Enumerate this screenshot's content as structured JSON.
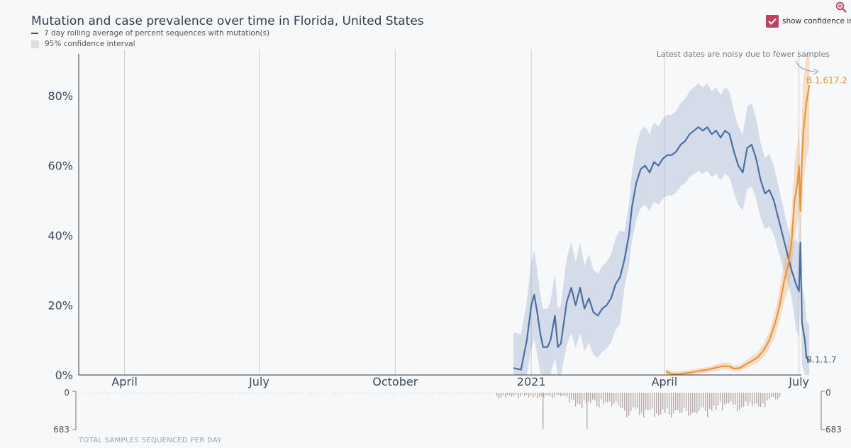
{
  "title": "Mutation and case prevalence over time in Florida, United States",
  "legend": {
    "line_label": "7 day rolling average of percent sequences with mutation(s)",
    "ci_label": "95% confidence interval"
  },
  "controls": {
    "ci_toggle_label": "show confidence interval",
    "ci_checked": true
  },
  "annotation": "Latest dates are noisy due to fewer samples",
  "footer_label": "TOTAL SAMPLES SEQUENCED PER DAY",
  "colors": {
    "b117": "#4a6fa5",
    "b16172": "#e8963a",
    "checkbox": "#c0405d",
    "bars": "#b8aba7"
  },
  "icons": {
    "zoom": "zoom-in-icon",
    "checkbox": "check-icon"
  },
  "chart_data": {
    "type": "line",
    "x_ticks": [
      "April",
      "July",
      "October",
      "2021",
      "April",
      "July"
    ],
    "y_ticks": [
      "0%",
      "20%",
      "40%",
      "60%",
      "80%"
    ],
    "ylim": [
      0,
      92
    ],
    "samples_axis": {
      "top_label": "0",
      "bottom_label": "683",
      "max": 683
    },
    "series": [
      {
        "name": "B.1.1.7",
        "color": "#4a6fa5",
        "points": [
          [
            "2020-12-20",
            2
          ],
          [
            "2020-12-25",
            1.5
          ],
          [
            "2020-12-29",
            10
          ],
          [
            "2021-01-01",
            20
          ],
          [
            "2021-01-03",
            23
          ],
          [
            "2021-01-05",
            18
          ],
          [
            "2021-01-07",
            12
          ],
          [
            "2021-01-09",
            8
          ],
          [
            "2021-01-12",
            8
          ],
          [
            "2021-01-14",
            10
          ],
          [
            "2021-01-17",
            17
          ],
          [
            "2021-01-19",
            8
          ],
          [
            "2021-01-21",
            9
          ],
          [
            "2021-01-25",
            21
          ],
          [
            "2021-01-28",
            25
          ],
          [
            "2021-01-31",
            20
          ],
          [
            "2021-02-03",
            25
          ],
          [
            "2021-02-06",
            19
          ],
          [
            "2021-02-09",
            22
          ],
          [
            "2021-02-12",
            18
          ],
          [
            "2021-02-15",
            17
          ],
          [
            "2021-02-18",
            19
          ],
          [
            "2021-02-21",
            20
          ],
          [
            "2021-02-24",
            22
          ],
          [
            "2021-02-27",
            26
          ],
          [
            "2021-03-02",
            28
          ],
          [
            "2021-03-05",
            33
          ],
          [
            "2021-03-08",
            40
          ],
          [
            "2021-03-10",
            48
          ],
          [
            "2021-03-13",
            55
          ],
          [
            "2021-03-16",
            59
          ],
          [
            "2021-03-19",
            60
          ],
          [
            "2021-03-22",
            58
          ],
          [
            "2021-03-25",
            61
          ],
          [
            "2021-03-28",
            60
          ],
          [
            "2021-03-31",
            62
          ],
          [
            "2021-04-03",
            63
          ],
          [
            "2021-04-06",
            63
          ],
          [
            "2021-04-09",
            64
          ],
          [
            "2021-04-12",
            66
          ],
          [
            "2021-04-15",
            67
          ],
          [
            "2021-04-18",
            69
          ],
          [
            "2021-04-21",
            70
          ],
          [
            "2021-04-24",
            71
          ],
          [
            "2021-04-27",
            70
          ],
          [
            "2021-04-30",
            71
          ],
          [
            "2021-05-03",
            69
          ],
          [
            "2021-05-06",
            70
          ],
          [
            "2021-05-09",
            68
          ],
          [
            "2021-05-12",
            70
          ],
          [
            "2021-05-15",
            69
          ],
          [
            "2021-05-18",
            64
          ],
          [
            "2021-05-21",
            60
          ],
          [
            "2021-05-24",
            58
          ],
          [
            "2021-05-27",
            65
          ],
          [
            "2021-05-30",
            66
          ],
          [
            "2021-06-02",
            62
          ],
          [
            "2021-06-05",
            56
          ],
          [
            "2021-06-08",
            52
          ],
          [
            "2021-06-11",
            53
          ],
          [
            "2021-06-14",
            50
          ],
          [
            "2021-06-17",
            45
          ],
          [
            "2021-06-20",
            40
          ],
          [
            "2021-06-23",
            35
          ],
          [
            "2021-06-26",
            30
          ],
          [
            "2021-06-29",
            26
          ],
          [
            "2021-07-01",
            24
          ],
          [
            "2021-07-02",
            38
          ],
          [
            "2021-07-03",
            15
          ],
          [
            "2021-07-05",
            10
          ],
          [
            "2021-07-06",
            5
          ],
          [
            "2021-07-08",
            4
          ]
        ]
      },
      {
        "name": "B.1.617.2",
        "color": "#e8963a",
        "points": [
          [
            "2021-04-02",
            1
          ],
          [
            "2021-04-06",
            0.3
          ],
          [
            "2021-04-10",
            0.2
          ],
          [
            "2021-04-15",
            0.5
          ],
          [
            "2021-04-20",
            0.8
          ],
          [
            "2021-04-25",
            1.2
          ],
          [
            "2021-04-30",
            1.5
          ],
          [
            "2021-05-05",
            2
          ],
          [
            "2021-05-10",
            2.5
          ],
          [
            "2021-05-15",
            2.5
          ],
          [
            "2021-05-18",
            1.8
          ],
          [
            "2021-05-22",
            2
          ],
          [
            "2021-05-26",
            3
          ],
          [
            "2021-05-30",
            4
          ],
          [
            "2021-06-03",
            5
          ],
          [
            "2021-06-07",
            7
          ],
          [
            "2021-06-11",
            10
          ],
          [
            "2021-06-15",
            15
          ],
          [
            "2021-06-18",
            20
          ],
          [
            "2021-06-21",
            27
          ],
          [
            "2021-06-24",
            32
          ],
          [
            "2021-06-26",
            38
          ],
          [
            "2021-06-28",
            50
          ],
          [
            "2021-06-30",
            55
          ],
          [
            "2021-07-01",
            60
          ],
          [
            "2021-07-02",
            47
          ],
          [
            "2021-07-03",
            62
          ],
          [
            "2021-07-04",
            70
          ],
          [
            "2021-07-06",
            78
          ],
          [
            "2021-07-08",
            83
          ]
        ]
      }
    ]
  }
}
